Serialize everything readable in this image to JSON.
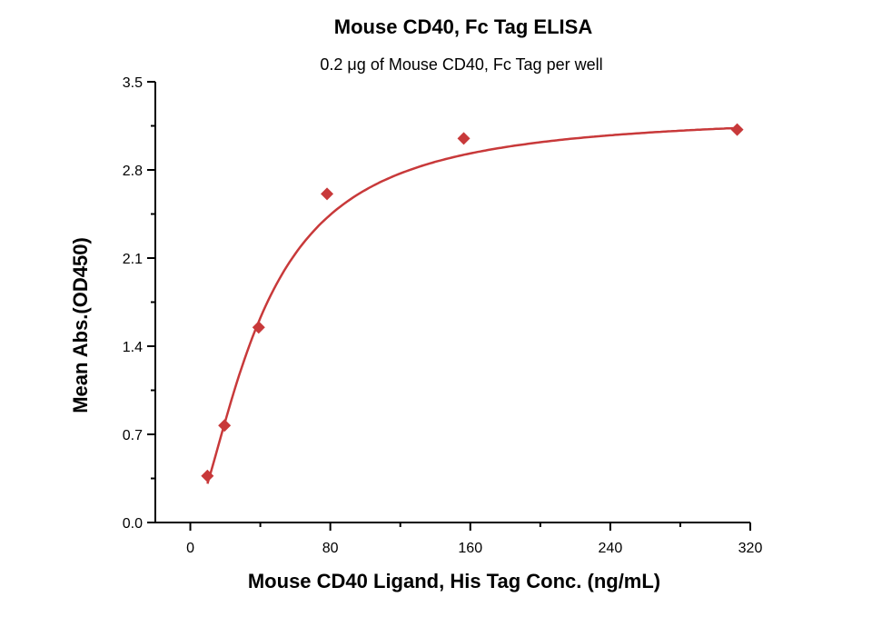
{
  "chart_data": {
    "type": "scatter",
    "title": "Mouse CD40, Fc Tag ELISA",
    "subtitle": "0.2 μg of Mouse CD40, Fc Tag per well",
    "xlabel": "Mouse CD40 Ligand, His Tag Conc. (ng/mL)",
    "ylabel": "Mean Abs.(OD450)",
    "xlim": [
      -20,
      320
    ],
    "ylim": [
      0,
      3.5
    ],
    "xticks": [
      0,
      80,
      160,
      240,
      320
    ],
    "xtick_labels": [
      "0",
      "80",
      "160",
      "240",
      "320"
    ],
    "yticks": [
      0,
      0.7,
      1.4,
      2.1,
      2.8,
      3.5
    ],
    "ytick_labels": [
      "0.0",
      "0.7",
      "1.4",
      "2.1",
      "2.8",
      "3.5"
    ],
    "grid": false,
    "series": [
      {
        "name": "Mouse CD40 Ligand, His Tag",
        "color": "#c8393a",
        "marker": "diamond",
        "x": [
          9.77,
          19.53,
          39.06,
          78.13,
          156.25,
          312.5
        ],
        "y": [
          0.37,
          0.77,
          1.55,
          2.61,
          3.05,
          3.12
        ],
        "fit": {
          "model": "4PL",
          "bottom": 0,
          "top": 3.25,
          "ec50": 40,
          "hill": 1.6
        }
      }
    ]
  }
}
